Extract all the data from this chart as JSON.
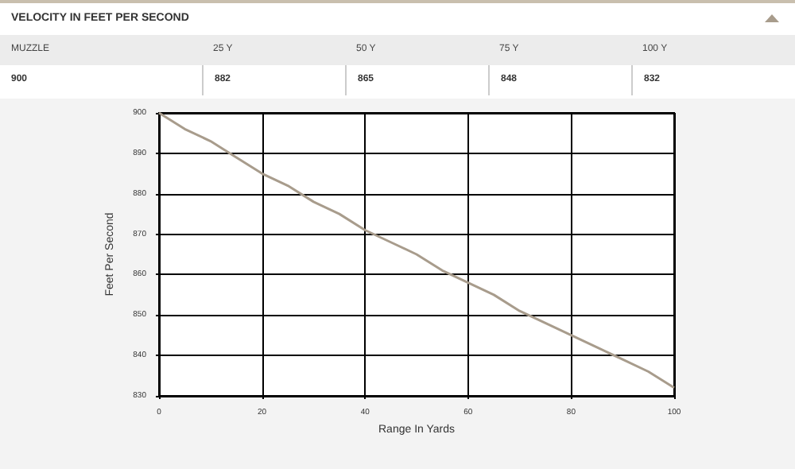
{
  "chart_data": {
    "type": "line",
    "title": "VELOCITY IN FEET PER SECOND",
    "xlabel": "Range In Yards",
    "ylabel": "Feet Per Second",
    "x": [
      0,
      5,
      10,
      15,
      20,
      25,
      30,
      35,
      40,
      45,
      50,
      55,
      60,
      65,
      70,
      75,
      80,
      85,
      90,
      95,
      100
    ],
    "series": [
      {
        "color": "#a89c8c",
        "values": [
          900,
          896,
          893,
          889,
          885,
          882,
          878,
          875,
          871,
          868,
          865,
          861,
          858,
          855,
          851,
          848,
          845,
          842,
          839,
          836,
          832
        ]
      }
    ],
    "xlim": [
      0,
      100
    ],
    "xticks": [
      0,
      20,
      40,
      60,
      80,
      100
    ],
    "ylim": [
      830,
      900
    ],
    "yticks": [
      830,
      840,
      850,
      860,
      870,
      880,
      890,
      900
    ],
    "grid": true,
    "marker": "none",
    "line_style": "solid",
    "annotations": [
      "MUZZLE",
      "25 Y",
      "50 Y",
      "75 Y",
      "100 Y",
      "900",
      "882",
      "865",
      "848",
      "832"
    ]
  }
}
